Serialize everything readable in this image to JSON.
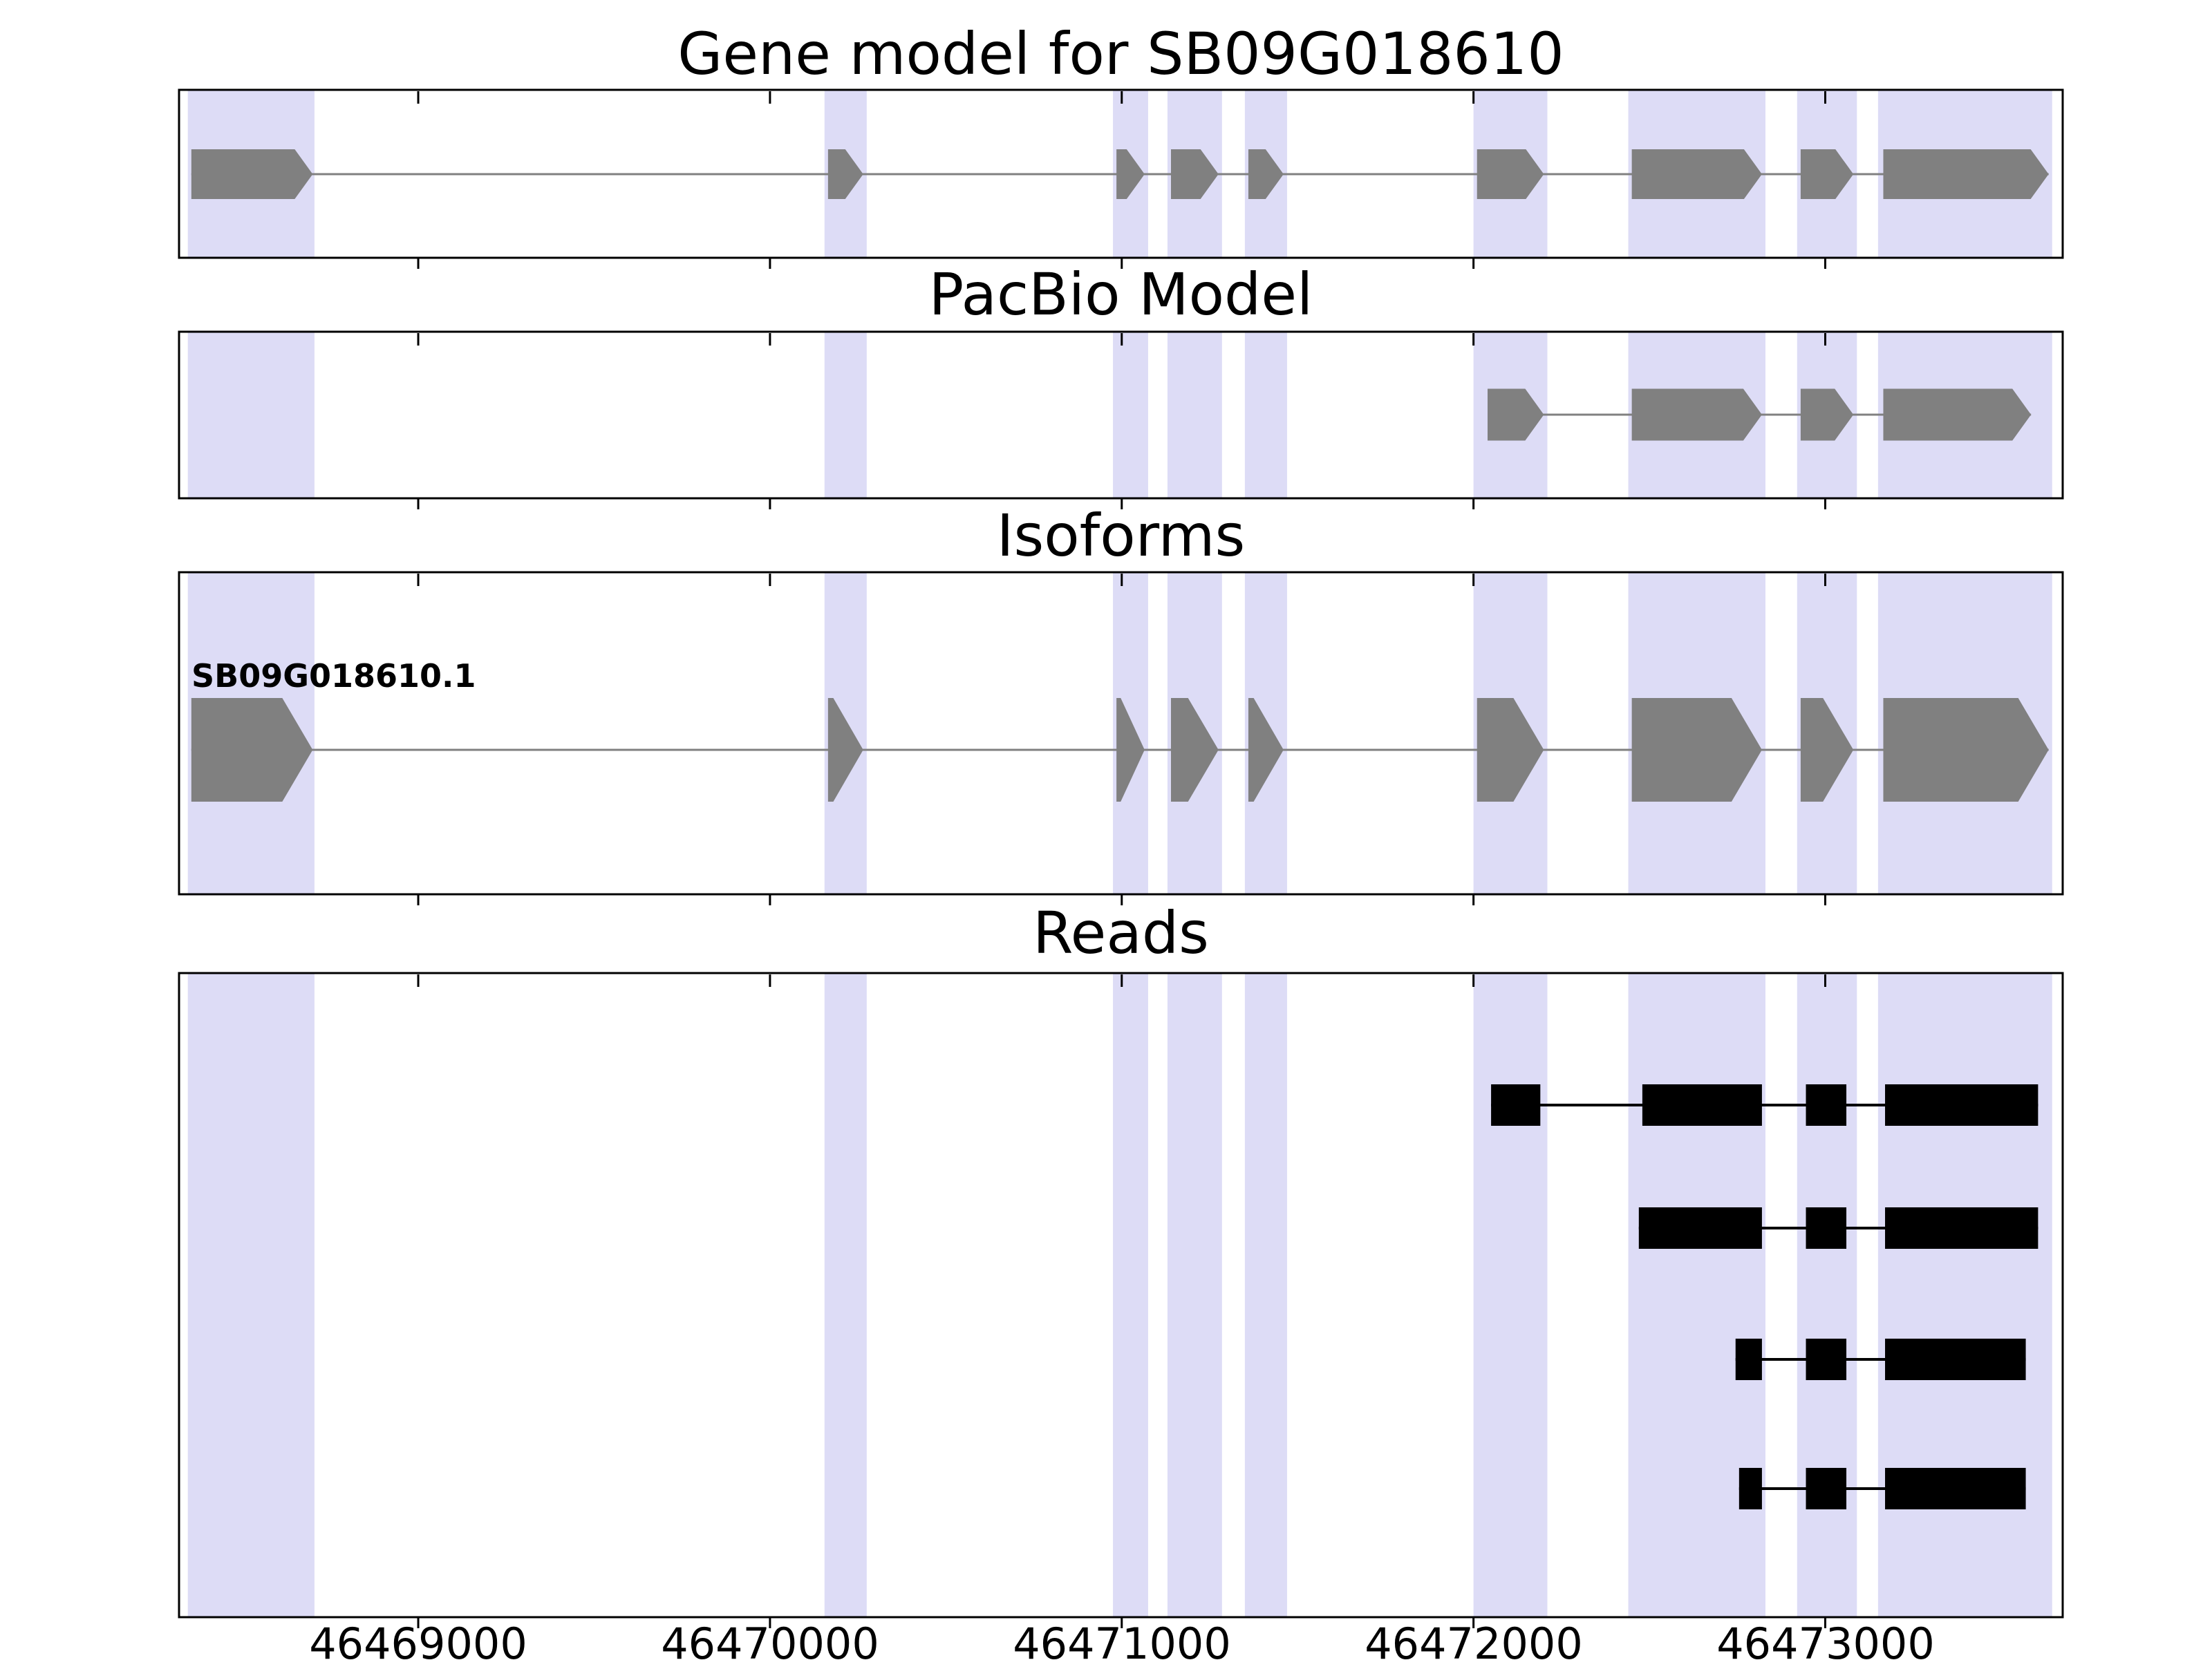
{
  "chart_data": {
    "type": "genomic-tracks",
    "gene_id": "SB09G018610",
    "axis": {
      "xmin": 46468320,
      "xmax": 46473675,
      "ticks": [
        46469000,
        46470000,
        46471000,
        46472000,
        46473000
      ],
      "tick_labels": [
        "46469000",
        "46470000",
        "46471000",
        "46472000",
        "46473000"
      ],
      "grid": false
    },
    "style": {
      "background": "#ffffff",
      "border_color": "#000000",
      "highlight_color": "#dddcf6",
      "exon_color": "#808080",
      "intron_color": "#808080",
      "read_color": "#000000"
    },
    "highlights": [
      [
        46468345,
        46468705
      ],
      [
        46470155,
        46470275
      ],
      [
        46470975,
        46471075
      ],
      [
        46471130,
        46471285
      ],
      [
        46471350,
        46471470
      ],
      [
        46472000,
        46472210
      ],
      [
        46472440,
        46472830
      ],
      [
        46472920,
        46473090
      ],
      [
        46473150,
        46473645
      ]
    ],
    "panels": [
      {
        "id": "gene-model",
        "title": "Gene model for SB09G018610",
        "kind": "model",
        "features": [
          {
            "label": "",
            "strand": "+",
            "exons": [
              [
                46468355,
                46468700
              ],
              [
                46470165,
                46470265
              ],
              [
                46470985,
                46471065
              ],
              [
                46471140,
                46471275
              ],
              [
                46471360,
                46471460
              ],
              [
                46472010,
                46472200
              ],
              [
                46472450,
                46472820
              ],
              [
                46472930,
                46473080
              ],
              [
                46473165,
                46473635
              ]
            ]
          }
        ]
      },
      {
        "id": "pacbio-model",
        "title": "PacBio Model",
        "kind": "model",
        "features": [
          {
            "label": "",
            "strand": "+",
            "exons": [
              [
                46472040,
                46472200
              ],
              [
                46472450,
                46472820
              ],
              [
                46472930,
                46473080
              ],
              [
                46473165,
                46473585
              ]
            ]
          }
        ]
      },
      {
        "id": "isoforms",
        "title": "Isoforms",
        "kind": "model",
        "features": [
          {
            "label": "SB09G018610.1",
            "strand": "+",
            "exons": [
              [
                46468355,
                46468700
              ],
              [
                46470165,
                46470265
              ],
              [
                46470985,
                46471065
              ],
              [
                46471140,
                46471275
              ],
              [
                46471360,
                46471460
              ],
              [
                46472010,
                46472200
              ],
              [
                46472450,
                46472820
              ],
              [
                46472930,
                46473080
              ],
              [
                46473165,
                46473635
              ]
            ]
          }
        ]
      },
      {
        "id": "reads",
        "title": "Reads",
        "kind": "reads",
        "features": [
          {
            "label": "",
            "exons": [
              [
                46472050,
                46472190
              ],
              [
                46472480,
                46472820
              ],
              [
                46472945,
                46473060
              ],
              [
                46473170,
                46473605
              ]
            ]
          },
          {
            "label": "",
            "exons": [
              [
                46472470,
                46472820
              ],
              [
                46472945,
                46473060
              ],
              [
                46473170,
                46473605
              ]
            ]
          },
          {
            "label": "",
            "exons": [
              [
                46472745,
                46472820
              ],
              [
                46472945,
                46473060
              ],
              [
                46473170,
                46473570
              ]
            ]
          },
          {
            "label": "",
            "exons": [
              [
                46472755,
                46472820
              ],
              [
                46472945,
                46473060
              ],
              [
                46473170,
                46473570
              ]
            ]
          }
        ]
      }
    ]
  }
}
